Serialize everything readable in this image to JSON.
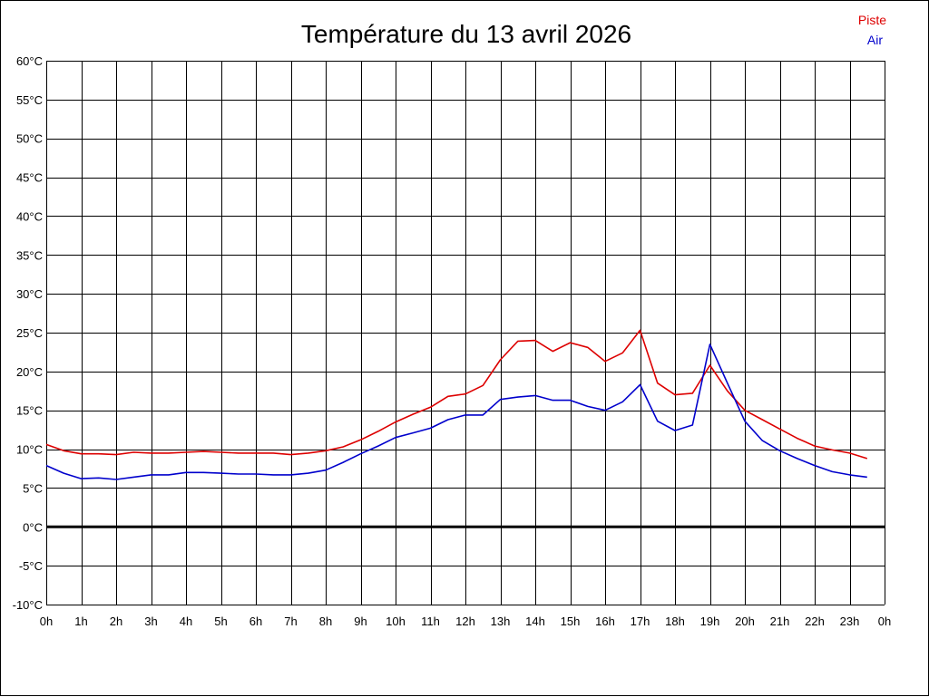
{
  "chart_data": {
    "type": "line",
    "title": "Température du 13 avril 2026",
    "xlabel": "",
    "ylabel": "",
    "x_ticks": [
      "0h",
      "1h",
      "2h",
      "3h",
      "4h",
      "5h",
      "6h",
      "7h",
      "8h",
      "9h",
      "10h",
      "11h",
      "12h",
      "13h",
      "14h",
      "15h",
      "16h",
      "17h",
      "18h",
      "19h",
      "20h",
      "21h",
      "22h",
      "23h",
      "0h"
    ],
    "y_ticks": [
      "60°C",
      "55°C",
      "50°C",
      "45°C",
      "40°C",
      "35°C",
      "30°C",
      "25°C",
      "20°C",
      "15°C",
      "10°C",
      "5°C",
      "0°C",
      "-5°C",
      "-10°C"
    ],
    "xlim": [
      0,
      24
    ],
    "ylim": [
      -10,
      60
    ],
    "grid": true,
    "legend_placement": "top-right",
    "zero_line": true,
    "x": [
      0,
      0.5,
      1,
      1.5,
      2,
      2.5,
      3,
      3.5,
      4,
      4.5,
      5,
      5.5,
      6,
      6.5,
      7,
      7.5,
      8,
      8.5,
      9,
      9.5,
      10,
      10.5,
      11,
      11.5,
      12,
      12.5,
      13,
      13.5,
      14,
      14.5,
      15,
      15.5,
      16,
      16.5,
      17,
      17.5,
      18,
      18.5,
      19,
      19.5,
      20,
      20.5,
      21,
      21.5,
      22,
      22.5,
      23,
      23.5
    ],
    "series": [
      {
        "name": "Piste",
        "color": "#dd0000",
        "values": [
          10.6,
          9.8,
          9.4,
          9.4,
          9.3,
          9.6,
          9.5,
          9.5,
          9.6,
          9.7,
          9.6,
          9.5,
          9.5,
          9.5,
          9.3,
          9.5,
          9.8,
          10.3,
          11.2,
          12.3,
          13.5,
          14.5,
          15.4,
          16.8,
          17.1,
          18.2,
          21.5,
          23.9,
          24.0,
          22.6,
          23.7,
          23.1,
          21.3,
          22.4,
          25.3,
          18.5,
          17.0,
          17.2,
          20.8,
          17.5,
          15.0,
          13.8,
          12.6,
          11.4,
          10.4,
          9.9,
          9.5,
          8.8
        ]
      },
      {
        "name": "Air",
        "color": "#0000cc",
        "values": [
          7.9,
          6.9,
          6.2,
          6.3,
          6.1,
          6.4,
          6.7,
          6.7,
          7.0,
          7.0,
          6.9,
          6.8,
          6.8,
          6.7,
          6.7,
          6.9,
          7.3,
          8.3,
          9.4,
          10.4,
          11.5,
          12.1,
          12.7,
          13.8,
          14.4,
          14.4,
          16.4,
          16.7,
          16.9,
          16.3,
          16.3,
          15.5,
          15.0,
          16.1,
          18.3,
          13.6,
          12.4,
          13.1,
          23.5,
          18.5,
          13.6,
          11.1,
          9.8,
          8.8,
          7.9,
          7.1,
          6.7,
          6.4
        ]
      }
    ]
  },
  "colors": {
    "grid": "#000000",
    "zero_line": "#000000"
  }
}
